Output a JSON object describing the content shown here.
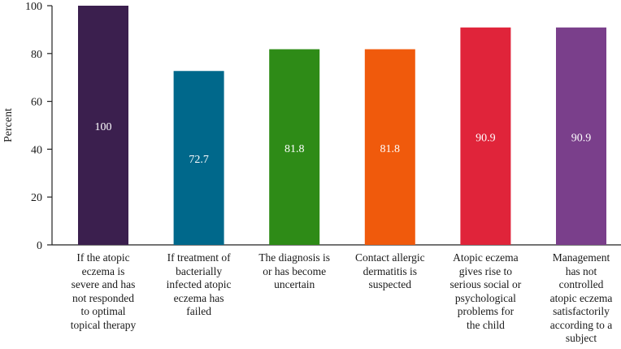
{
  "chart_data": {
    "type": "bar",
    "title": "",
    "xlabel": "",
    "ylabel": "Percent",
    "ylim": [
      0,
      100
    ],
    "yticks": [
      0,
      20,
      40,
      60,
      80,
      100
    ],
    "grid": false,
    "categories": [
      "If the atopic eczema is severe and has not responded to optimal topical therapy",
      "If treatment of bacterially infected atopic eczema has failed",
      "The diagnosis is or has become uncertain",
      "Contact allergic dermatitis is suspected",
      "Atopic eczema gives rise to serious social or psychological problems for the child",
      "Management has not controlled atopic eczema satisfactorily according to a subject"
    ],
    "category_lines": [
      [
        "If the atopic",
        "eczema is",
        "severe and has",
        "not responded",
        "to optimal",
        "topical therapy"
      ],
      [
        "If treatment of",
        "bacterially",
        "infected atopic",
        "eczema has",
        "failed"
      ],
      [
        "The diagnosis is",
        "or has become",
        "uncertain"
      ],
      [
        "Contact allergic",
        "dermatitis is",
        "suspected"
      ],
      [
        "Atopic eczema",
        "gives rise to",
        "serious social or",
        "psychological",
        "problems for",
        "the child"
      ],
      [
        "Management",
        "has not",
        "controlled",
        "atopic eczema",
        "satisfactorily",
        "according to a",
        "subject"
      ]
    ],
    "values": [
      100,
      72.7,
      81.8,
      81.8,
      90.9,
      90.9
    ],
    "value_labels": [
      "100",
      "72.7",
      "81.8",
      "81.8",
      "90.9",
      "90.9"
    ],
    "colors": [
      "#3b1f4e",
      "#00688b",
      "#2e8b17",
      "#f05a0c",
      "#e0243a",
      "#7a3f8b"
    ]
  }
}
